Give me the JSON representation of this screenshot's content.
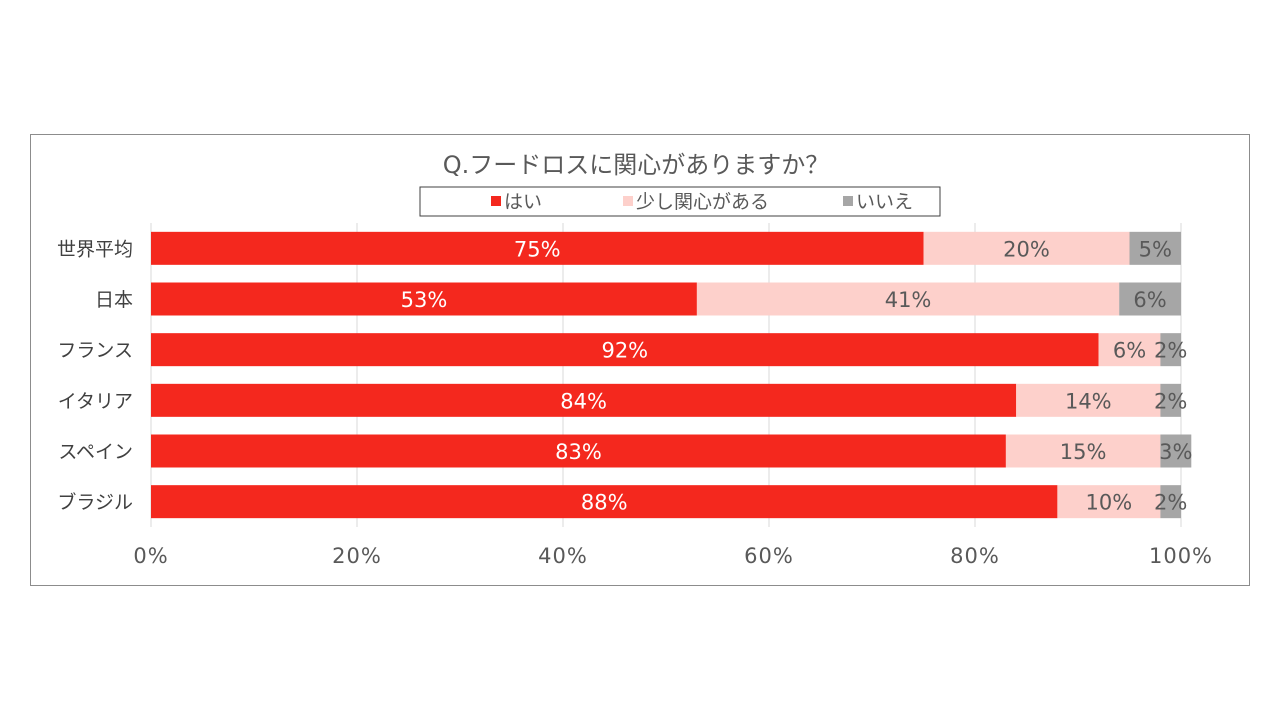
{
  "chart_data": {
    "type": "bar",
    "orientation": "horizontal",
    "stacked": true,
    "title": "Q.フードロスに関心がありますか？",
    "categories": [
      "世界平均",
      "日本",
      "フランス",
      "イタリア",
      "スペイン",
      "ブラジル"
    ],
    "series": [
      {
        "name": "はい",
        "color": "#f4281e",
        "label_color": "#ffffff",
        "values": [
          75,
          53,
          92,
          84,
          83,
          88
        ]
      },
      {
        "name": "少し関心がある",
        "color": "#fdd0cb",
        "label_color": "#595959",
        "values": [
          20,
          41,
          6,
          14,
          15,
          10
        ]
      },
      {
        "name": "いいえ",
        "color": "#a6a6a6",
        "label_color": "#595959",
        "values": [
          5,
          6,
          2,
          2,
          3,
          2
        ]
      }
    ],
    "xlim": [
      0,
      100
    ],
    "x_ticks": [
      0,
      20,
      40,
      60,
      80,
      100
    ],
    "tick_suffix": "%",
    "value_suffix": "%",
    "grid": true,
    "legend_position": "top"
  }
}
